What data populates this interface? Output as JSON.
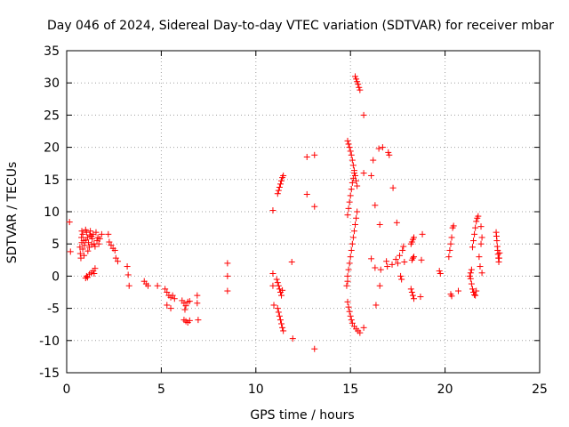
{
  "chart_data": {
    "type": "scatter",
    "title": "Day 046 of 2024, Sidereal Day-to-day VTEC variation (SDTVAR) for receiver mbar",
    "xlabel": "GPS time / hours",
    "ylabel": "SDTVAR / TECUs",
    "xlim": [
      0,
      25
    ],
    "ylim": [
      -15,
      35
    ],
    "xticks": [
      "0",
      "5",
      "10",
      "15",
      "20",
      "25"
    ],
    "yticks": [
      "-15",
      "-10",
      "-5",
      "0",
      "5",
      "10",
      "15",
      "20",
      "25",
      "30",
      "35"
    ],
    "grid": true,
    "marker": "+",
    "color": "#ff0000",
    "series": [
      {
        "name": "",
        "points": [
          [
            0.15,
            8.4
          ],
          [
            0.2,
            3.8
          ],
          [
            0.7,
            4.5
          ],
          [
            0.72,
            3.5
          ],
          [
            0.75,
            2.8
          ],
          [
            0.78,
            6.0
          ],
          [
            0.8,
            7.0
          ],
          [
            0.85,
            6.5
          ],
          [
            0.9,
            5.5
          ],
          [
            0.95,
            4.8
          ],
          [
            1.0,
            7.2
          ],
          [
            1.05,
            6.8
          ],
          [
            1.1,
            6.0
          ],
          [
            1.15,
            5.2
          ],
          [
            1.2,
            4.5
          ],
          [
            1.25,
            7.0
          ],
          [
            1.3,
            6.2
          ],
          [
            1.35,
            5.8
          ],
          [
            1.4,
            6.5
          ],
          [
            1.45,
            5.0
          ],
          [
            1.5,
            4.6
          ],
          [
            1.55,
            6.8
          ],
          [
            1.6,
            5.5
          ],
          [
            1.65,
            6.0
          ],
          [
            1.7,
            5.0
          ],
          [
            1.75,
            5.8
          ],
          [
            1.85,
            6.5
          ],
          [
            0.8,
            5.2
          ],
          [
            0.85,
            4.2
          ],
          [
            0.92,
            3.2
          ],
          [
            1.02,
            5.6
          ],
          [
            1.12,
            3.9
          ],
          [
            1.22,
            6.4
          ],
          [
            1.32,
            4.9
          ],
          [
            1.0,
            -0.3
          ],
          [
            1.05,
            0.0
          ],
          [
            1.1,
            -0.2
          ],
          [
            1.2,
            0.3
          ],
          [
            1.3,
            0.5
          ],
          [
            1.4,
            0.8
          ],
          [
            1.5,
            1.2
          ],
          [
            1.45,
            0.4
          ],
          [
            2.2,
            6.5
          ],
          [
            2.25,
            5.3
          ],
          [
            2.35,
            4.8
          ],
          [
            2.45,
            4.3
          ],
          [
            2.55,
            4.0
          ],
          [
            2.6,
            2.8
          ],
          [
            2.7,
            2.3
          ],
          [
            3.2,
            1.5
          ],
          [
            3.25,
            0.2
          ],
          [
            3.3,
            -1.5
          ],
          [
            4.1,
            -0.8
          ],
          [
            4.2,
            -1.2
          ],
          [
            4.3,
            -1.5
          ],
          [
            4.8,
            -1.5
          ],
          [
            5.2,
            -2.0
          ],
          [
            5.3,
            -2.5
          ],
          [
            5.4,
            -3.0
          ],
          [
            5.5,
            -3.3
          ],
          [
            5.6,
            -3.0
          ],
          [
            5.7,
            -3.5
          ],
          [
            5.3,
            -4.5
          ],
          [
            5.5,
            -5.0
          ],
          [
            6.1,
            -3.8
          ],
          [
            6.2,
            -4.2
          ],
          [
            6.3,
            -4.6
          ],
          [
            6.4,
            -4.0
          ],
          [
            6.5,
            -3.9
          ],
          [
            6.25,
            -5.2
          ],
          [
            6.2,
            -6.8
          ],
          [
            6.3,
            -7.0
          ],
          [
            6.4,
            -7.2
          ],
          [
            6.5,
            -6.9
          ],
          [
            6.9,
            -3.0
          ],
          [
            6.9,
            -4.2
          ],
          [
            6.95,
            -6.8
          ],
          [
            8.5,
            2.0
          ],
          [
            8.5,
            0.0
          ],
          [
            8.5,
            -2.3
          ],
          [
            10.9,
            10.2
          ],
          [
            10.9,
            0.4
          ],
          [
            10.9,
            -1.5
          ],
          [
            10.95,
            -4.5
          ],
          [
            11.1,
            -0.5
          ],
          [
            11.15,
            -1.0
          ],
          [
            11.2,
            -1.5
          ],
          [
            11.25,
            -2.0
          ],
          [
            11.3,
            -2.5
          ],
          [
            11.35,
            -3.0
          ],
          [
            11.4,
            -2.2
          ],
          [
            11.15,
            -5.0
          ],
          [
            11.2,
            -5.6
          ],
          [
            11.25,
            -6.2
          ],
          [
            11.3,
            -6.8
          ],
          [
            11.35,
            -7.4
          ],
          [
            11.4,
            -8.0
          ],
          [
            11.45,
            -8.5
          ],
          [
            11.15,
            12.8
          ],
          [
            11.2,
            13.3
          ],
          [
            11.25,
            13.8
          ],
          [
            11.3,
            14.3
          ],
          [
            11.35,
            14.8
          ],
          [
            11.4,
            15.3
          ],
          [
            11.45,
            15.6
          ],
          [
            11.9,
            2.2
          ],
          [
            11.95,
            -9.7
          ],
          [
            12.7,
            18.5
          ],
          [
            12.7,
            12.7
          ],
          [
            13.1,
            18.8
          ],
          [
            13.1,
            10.8
          ],
          [
            13.1,
            -11.3
          ],
          [
            14.85,
            21.0
          ],
          [
            14.9,
            20.5
          ],
          [
            14.95,
            20.0
          ],
          [
            15.0,
            19.4
          ],
          [
            15.05,
            18.8
          ],
          [
            15.1,
            18.0
          ],
          [
            15.15,
            17.2
          ],
          [
            15.2,
            16.4
          ],
          [
            15.25,
            15.6
          ],
          [
            15.3,
            14.8
          ],
          [
            15.35,
            14.0
          ],
          [
            14.85,
            9.5
          ],
          [
            14.9,
            10.5
          ],
          [
            14.95,
            11.5
          ],
          [
            15.0,
            12.5
          ],
          [
            15.05,
            13.5
          ],
          [
            15.1,
            14.5
          ],
          [
            15.15,
            15.2
          ],
          [
            15.2,
            16.0
          ],
          [
            14.85,
            0.0
          ],
          [
            14.9,
            1.0
          ],
          [
            14.95,
            2.0
          ],
          [
            15.0,
            3.0
          ],
          [
            15.05,
            4.0
          ],
          [
            15.1,
            5.0
          ],
          [
            15.15,
            6.0
          ],
          [
            15.2,
            7.0
          ],
          [
            15.25,
            8.0
          ],
          [
            15.3,
            9.0
          ],
          [
            15.35,
            10.0
          ],
          [
            14.8,
            -1.5
          ],
          [
            14.85,
            -0.8
          ],
          [
            14.85,
            -4.0
          ],
          [
            14.9,
            -4.8
          ],
          [
            14.95,
            -5.5
          ],
          [
            15.0,
            -6.2
          ],
          [
            15.05,
            -6.8
          ],
          [
            15.1,
            -7.3
          ],
          [
            15.2,
            -7.8
          ],
          [
            15.3,
            -8.2
          ],
          [
            15.4,
            -8.5
          ],
          [
            15.5,
            -8.8
          ],
          [
            15.25,
            31.0
          ],
          [
            15.3,
            30.6
          ],
          [
            15.35,
            30.2
          ],
          [
            15.4,
            29.8
          ],
          [
            15.45,
            29.3
          ],
          [
            15.5,
            28.9
          ],
          [
            15.7,
            25.0
          ],
          [
            15.7,
            16.0
          ],
          [
            15.7,
            -8.0
          ],
          [
            16.1,
            15.6
          ],
          [
            16.1,
            2.7
          ],
          [
            16.2,
            18.0
          ],
          [
            16.3,
            11.0
          ],
          [
            16.3,
            1.3
          ],
          [
            16.35,
            -4.5
          ],
          [
            16.5,
            19.8
          ],
          [
            16.55,
            8.0
          ],
          [
            16.55,
            -1.5
          ],
          [
            16.6,
            1.0
          ],
          [
            16.7,
            20.0
          ],
          [
            16.9,
            2.3
          ],
          [
            16.95,
            1.5
          ],
          [
            17.0,
            19.2
          ],
          [
            17.05,
            18.8
          ],
          [
            17.2,
            1.8
          ],
          [
            17.25,
            13.7
          ],
          [
            17.4,
            2.6
          ],
          [
            17.45,
            8.3
          ],
          [
            17.5,
            2.0
          ],
          [
            17.6,
            3.2
          ],
          [
            17.65,
            0.0
          ],
          [
            17.7,
            -0.5
          ],
          [
            17.75,
            4.0
          ],
          [
            17.8,
            4.6
          ],
          [
            17.85,
            2.2
          ],
          [
            18.2,
            5.0
          ],
          [
            18.25,
            5.3
          ],
          [
            18.3,
            5.7
          ],
          [
            18.35,
            6.0
          ],
          [
            18.25,
            2.5
          ],
          [
            18.3,
            2.8
          ],
          [
            18.35,
            3.0
          ],
          [
            18.2,
            -2.0
          ],
          [
            18.25,
            -2.5
          ],
          [
            18.3,
            -3.0
          ],
          [
            18.35,
            -3.5
          ],
          [
            18.7,
            -3.2
          ],
          [
            18.75,
            2.5
          ],
          [
            18.8,
            6.5
          ],
          [
            19.7,
            0.8
          ],
          [
            19.75,
            0.4
          ],
          [
            20.3,
            -2.8
          ],
          [
            20.35,
            -3.1
          ],
          [
            20.2,
            3.0
          ],
          [
            20.25,
            4.0
          ],
          [
            20.3,
            5.0
          ],
          [
            20.35,
            6.0
          ],
          [
            20.4,
            7.5
          ],
          [
            20.45,
            7.8
          ],
          [
            20.7,
            -2.3
          ],
          [
            21.35,
            -0.4
          ],
          [
            21.4,
            -1.2
          ],
          [
            21.45,
            -2.0
          ],
          [
            21.5,
            -2.5
          ],
          [
            21.55,
            -2.9
          ],
          [
            21.6,
            -3.0
          ],
          [
            21.65,
            -2.3
          ],
          [
            21.3,
            0.0
          ],
          [
            21.35,
            0.5
          ],
          [
            21.4,
            1.0
          ],
          [
            21.45,
            4.5
          ],
          [
            21.5,
            5.5
          ],
          [
            21.55,
            6.5
          ],
          [
            21.6,
            7.5
          ],
          [
            21.65,
            8.5
          ],
          [
            21.7,
            9.0
          ],
          [
            21.75,
            9.3
          ],
          [
            21.9,
            7.7
          ],
          [
            21.95,
            6.0
          ],
          [
            21.8,
            3.0
          ],
          [
            21.85,
            1.5
          ],
          [
            21.9,
            5.0
          ],
          [
            21.95,
            0.5
          ],
          [
            22.7,
            6.8
          ],
          [
            22.72,
            6.2
          ],
          [
            22.74,
            5.5
          ],
          [
            22.76,
            4.6
          ],
          [
            22.78,
            4.0
          ],
          [
            22.8,
            3.4
          ],
          [
            22.82,
            2.8
          ],
          [
            22.84,
            2.2
          ],
          [
            22.86,
            2.8
          ],
          [
            22.88,
            3.6
          ]
        ]
      }
    ]
  }
}
